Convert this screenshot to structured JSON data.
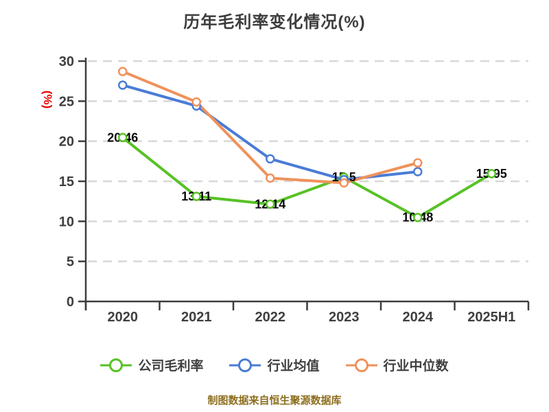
{
  "title": "历年毛利率变化情况(%)",
  "footer": "制图数据来自恒生聚源数据库",
  "colors": {
    "axis": "#3d3d3d",
    "grid": "#d8d8d8",
    "tick_label": "#3f3f3f",
    "data_label": "#0a0a0a",
    "y_axis_name": "#eb0000",
    "footer": "#8d6e1e",
    "marker_fill": "#ffffff"
  },
  "chart_data": {
    "type": "line",
    "title": "历年毛利率变化情况(%)",
    "ylabel": "(%)",
    "xlabel": "",
    "ylim": [
      0,
      30
    ],
    "yticks": [
      0,
      5,
      10,
      15,
      20,
      25,
      30
    ],
    "grid": "horizontal-dashed",
    "legend_position": "bottom",
    "categories": [
      "2020",
      "2021",
      "2022",
      "2023",
      "2024",
      "2025H1"
    ],
    "series": [
      {
        "name": "公司毛利率",
        "color": "#57c226",
        "labeled": true,
        "values": [
          20.46,
          13.11,
          12.14,
          15.5,
          10.48,
          15.95
        ]
      },
      {
        "name": "行业均值",
        "color": "#4a7cd6",
        "labeled": false,
        "values": [
          27.0,
          24.4,
          17.8,
          15.2,
          16.2,
          null
        ]
      },
      {
        "name": "行业中位数",
        "color": "#f0915b",
        "labeled": false,
        "values": [
          28.7,
          24.9,
          15.4,
          14.8,
          17.3,
          null
        ]
      }
    ]
  }
}
